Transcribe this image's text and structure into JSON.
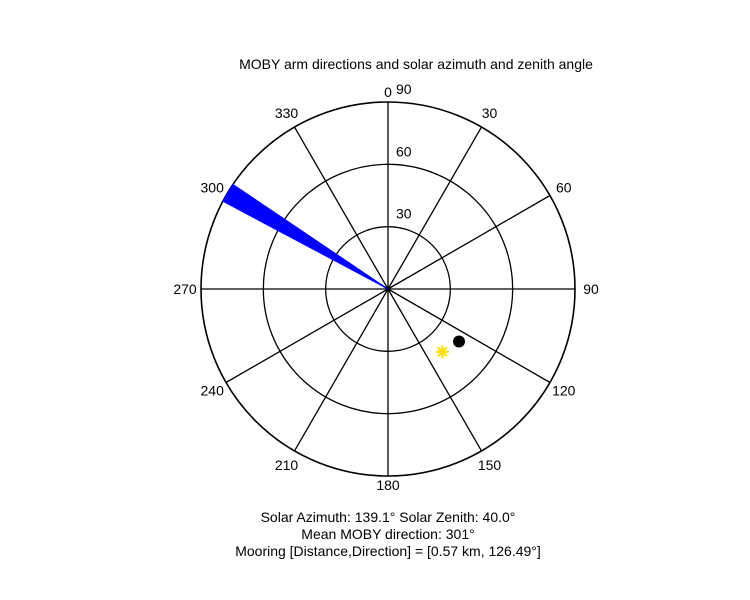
{
  "chart_data": {
    "type": "polar",
    "title": "MOBY arm directions and solar azimuth and zenith angle",
    "angular_axis": {
      "ticks": [
        0,
        30,
        60,
        90,
        120,
        150,
        180,
        210,
        240,
        270,
        300,
        330
      ],
      "labels": [
        "0",
        "30",
        "60",
        "90",
        "120",
        "150",
        "180",
        "210",
        "240",
        "270",
        "300",
        "330"
      ],
      "zero_direction": "top",
      "direction": "clockwise"
    },
    "radial_axis": {
      "max": 90,
      "rings": [
        30,
        60,
        90
      ],
      "labels": [
        "30",
        "60",
        "90"
      ]
    },
    "series": [
      {
        "type": "wedge",
        "azimuth_from": 298,
        "azimuth_to": 304,
        "radius": 90,
        "color": "#0000ff"
      },
      {
        "type": "marker",
        "shape": "star",
        "azimuth": 139.1,
        "zenith": 40.0,
        "color": "#ffe000"
      },
      {
        "type": "marker",
        "shape": "dot",
        "azimuth": 126.49,
        "zenith": 42.5,
        "color": "#000000"
      }
    ],
    "annotations": [
      {
        "id": "solar",
        "text": "Solar Azimuth: 139.1°   Solar Zenith: 40.0°"
      },
      {
        "id": "mean",
        "text": "Mean MOBY direction: 301°"
      },
      {
        "id": "mooring",
        "text": "Mooring [Distance,Direction] = [0.57 km, 126.49°]"
      }
    ]
  }
}
